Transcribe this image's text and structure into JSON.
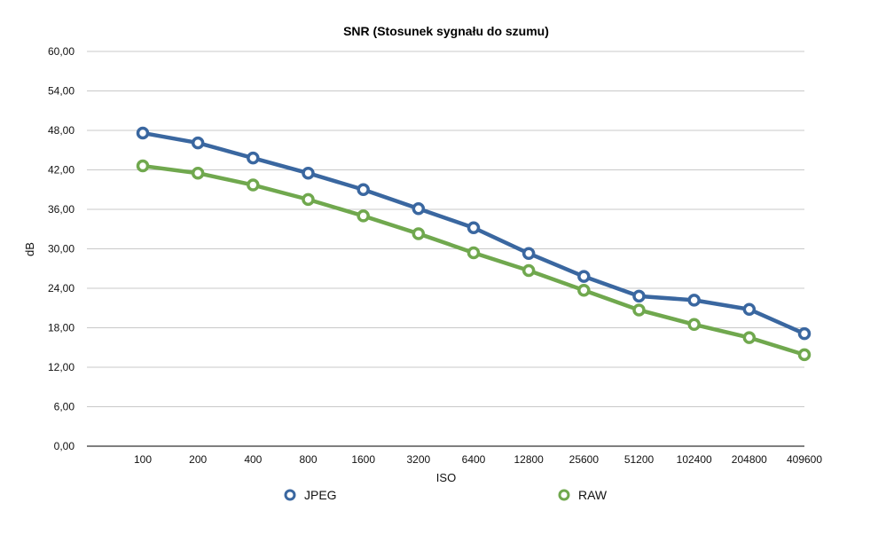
{
  "chart_data": {
    "type": "line",
    "title": "SNR (Stosunek sygnału do szumu)",
    "xlabel": "ISO",
    "ylabel": "dB",
    "categories": [
      "100",
      "200",
      "400",
      "800",
      "1600",
      "3200",
      "6400",
      "12800",
      "25600",
      "51200",
      "102400",
      "204800",
      "409600"
    ],
    "y_ticks": [
      "0,00",
      "6,00",
      "12,00",
      "18,00",
      "24,00",
      "30,00",
      "36,00",
      "42,00",
      "48,00",
      "54,00",
      "60,00"
    ],
    "ylim": [
      0,
      60
    ],
    "grid": true,
    "legend_position": "bottom",
    "series": [
      {
        "name": "JPEG",
        "color": "#3a67a0",
        "values": [
          47.6,
          46.1,
          43.8,
          41.5,
          39.0,
          36.1,
          33.2,
          29.3,
          25.8,
          22.8,
          22.2,
          20.8,
          17.1
        ]
      },
      {
        "name": "RAW",
        "color": "#70a84e",
        "values": [
          42.6,
          41.5,
          39.7,
          37.5,
          35.0,
          32.3,
          29.4,
          26.7,
          23.7,
          20.7,
          18.5,
          16.5,
          13.9
        ]
      }
    ]
  }
}
